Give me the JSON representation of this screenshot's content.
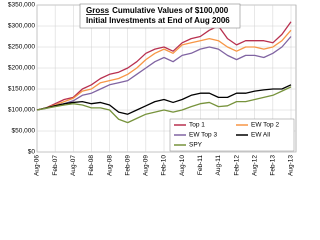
{
  "chart_data": {
    "type": "line",
    "title": {
      "emphasis": "Gross",
      "line1": "Cumulative Values of $100,000",
      "line2": "Initial Investments at End of Aug 2006"
    },
    "categories": [
      "Aug-06",
      null,
      "Feb-07",
      null,
      "Aug-07",
      null,
      "Feb-08",
      null,
      "Aug-08",
      null,
      "Feb-09",
      null,
      "Aug-09",
      null,
      "Feb-10",
      null,
      "Aug-10",
      null,
      "Feb-11",
      null,
      "Aug-11",
      null,
      "Feb-12",
      null,
      "Aug-12",
      null,
      "Feb-13",
      null,
      "Aug-13"
    ],
    "series": [
      {
        "name": "Top 1",
        "color": "#b8304f",
        "values": [
          100000,
          105000,
          115000,
          125000,
          130000,
          150000,
          160000,
          175000,
          185000,
          190000,
          200000,
          215000,
          235000,
          245000,
          250000,
          240000,
          260000,
          270000,
          275000,
          290000,
          300000,
          270000,
          255000,
          265000,
          265000,
          265000,
          260000,
          280000,
          310000
        ]
      },
      {
        "name": "EW Top 2",
        "color": "#f79646",
        "values": [
          100000,
          105000,
          112000,
          120000,
          128000,
          145000,
          150000,
          165000,
          170000,
          175000,
          185000,
          200000,
          220000,
          235000,
          245000,
          235000,
          255000,
          260000,
          265000,
          270000,
          265000,
          250000,
          240000,
          250000,
          250000,
          245000,
          250000,
          265000,
          290000
        ]
      },
      {
        "name": "EW Top 3",
        "color": "#8064a2",
        "values": [
          100000,
          104000,
          110000,
          115000,
          122000,
          135000,
          140000,
          150000,
          160000,
          165000,
          170000,
          185000,
          200000,
          215000,
          225000,
          215000,
          230000,
          235000,
          245000,
          250000,
          245000,
          230000,
          220000,
          230000,
          230000,
          225000,
          235000,
          250000,
          275000
        ]
      },
      {
        "name": "EW All",
        "color": "#000000",
        "values": [
          100000,
          105000,
          110000,
          115000,
          118000,
          120000,
          115000,
          118000,
          112000,
          95000,
          90000,
          100000,
          110000,
          120000,
          125000,
          118000,
          125000,
          135000,
          140000,
          140000,
          130000,
          130000,
          140000,
          140000,
          145000,
          148000,
          150000,
          150000,
          160000
        ]
      },
      {
        "name": "SPY",
        "color": "#77933c",
        "values": [
          100000,
          104000,
          108000,
          112000,
          115000,
          112000,
          105000,
          105000,
          100000,
          78000,
          70000,
          80000,
          90000,
          95000,
          100000,
          95000,
          100000,
          108000,
          115000,
          118000,
          108000,
          110000,
          120000,
          120000,
          125000,
          130000,
          135000,
          145000,
          155000
        ]
      }
    ],
    "ylim": [
      0,
      350000
    ],
    "yticks": [
      {
        "value": 0,
        "label": "$0"
      },
      {
        "value": 50000,
        "label": "$50,000"
      },
      {
        "value": 100000,
        "label": "$100,000"
      },
      {
        "value": 150000,
        "label": "$150,000"
      },
      {
        "value": 200000,
        "label": "$200,000"
      },
      {
        "value": 250000,
        "label": "$250,000"
      },
      {
        "value": 300000,
        "label": "$300,000"
      },
      {
        "value": 350000,
        "label": "$350,000"
      }
    ],
    "grid": true,
    "legend": "lower-right"
  }
}
